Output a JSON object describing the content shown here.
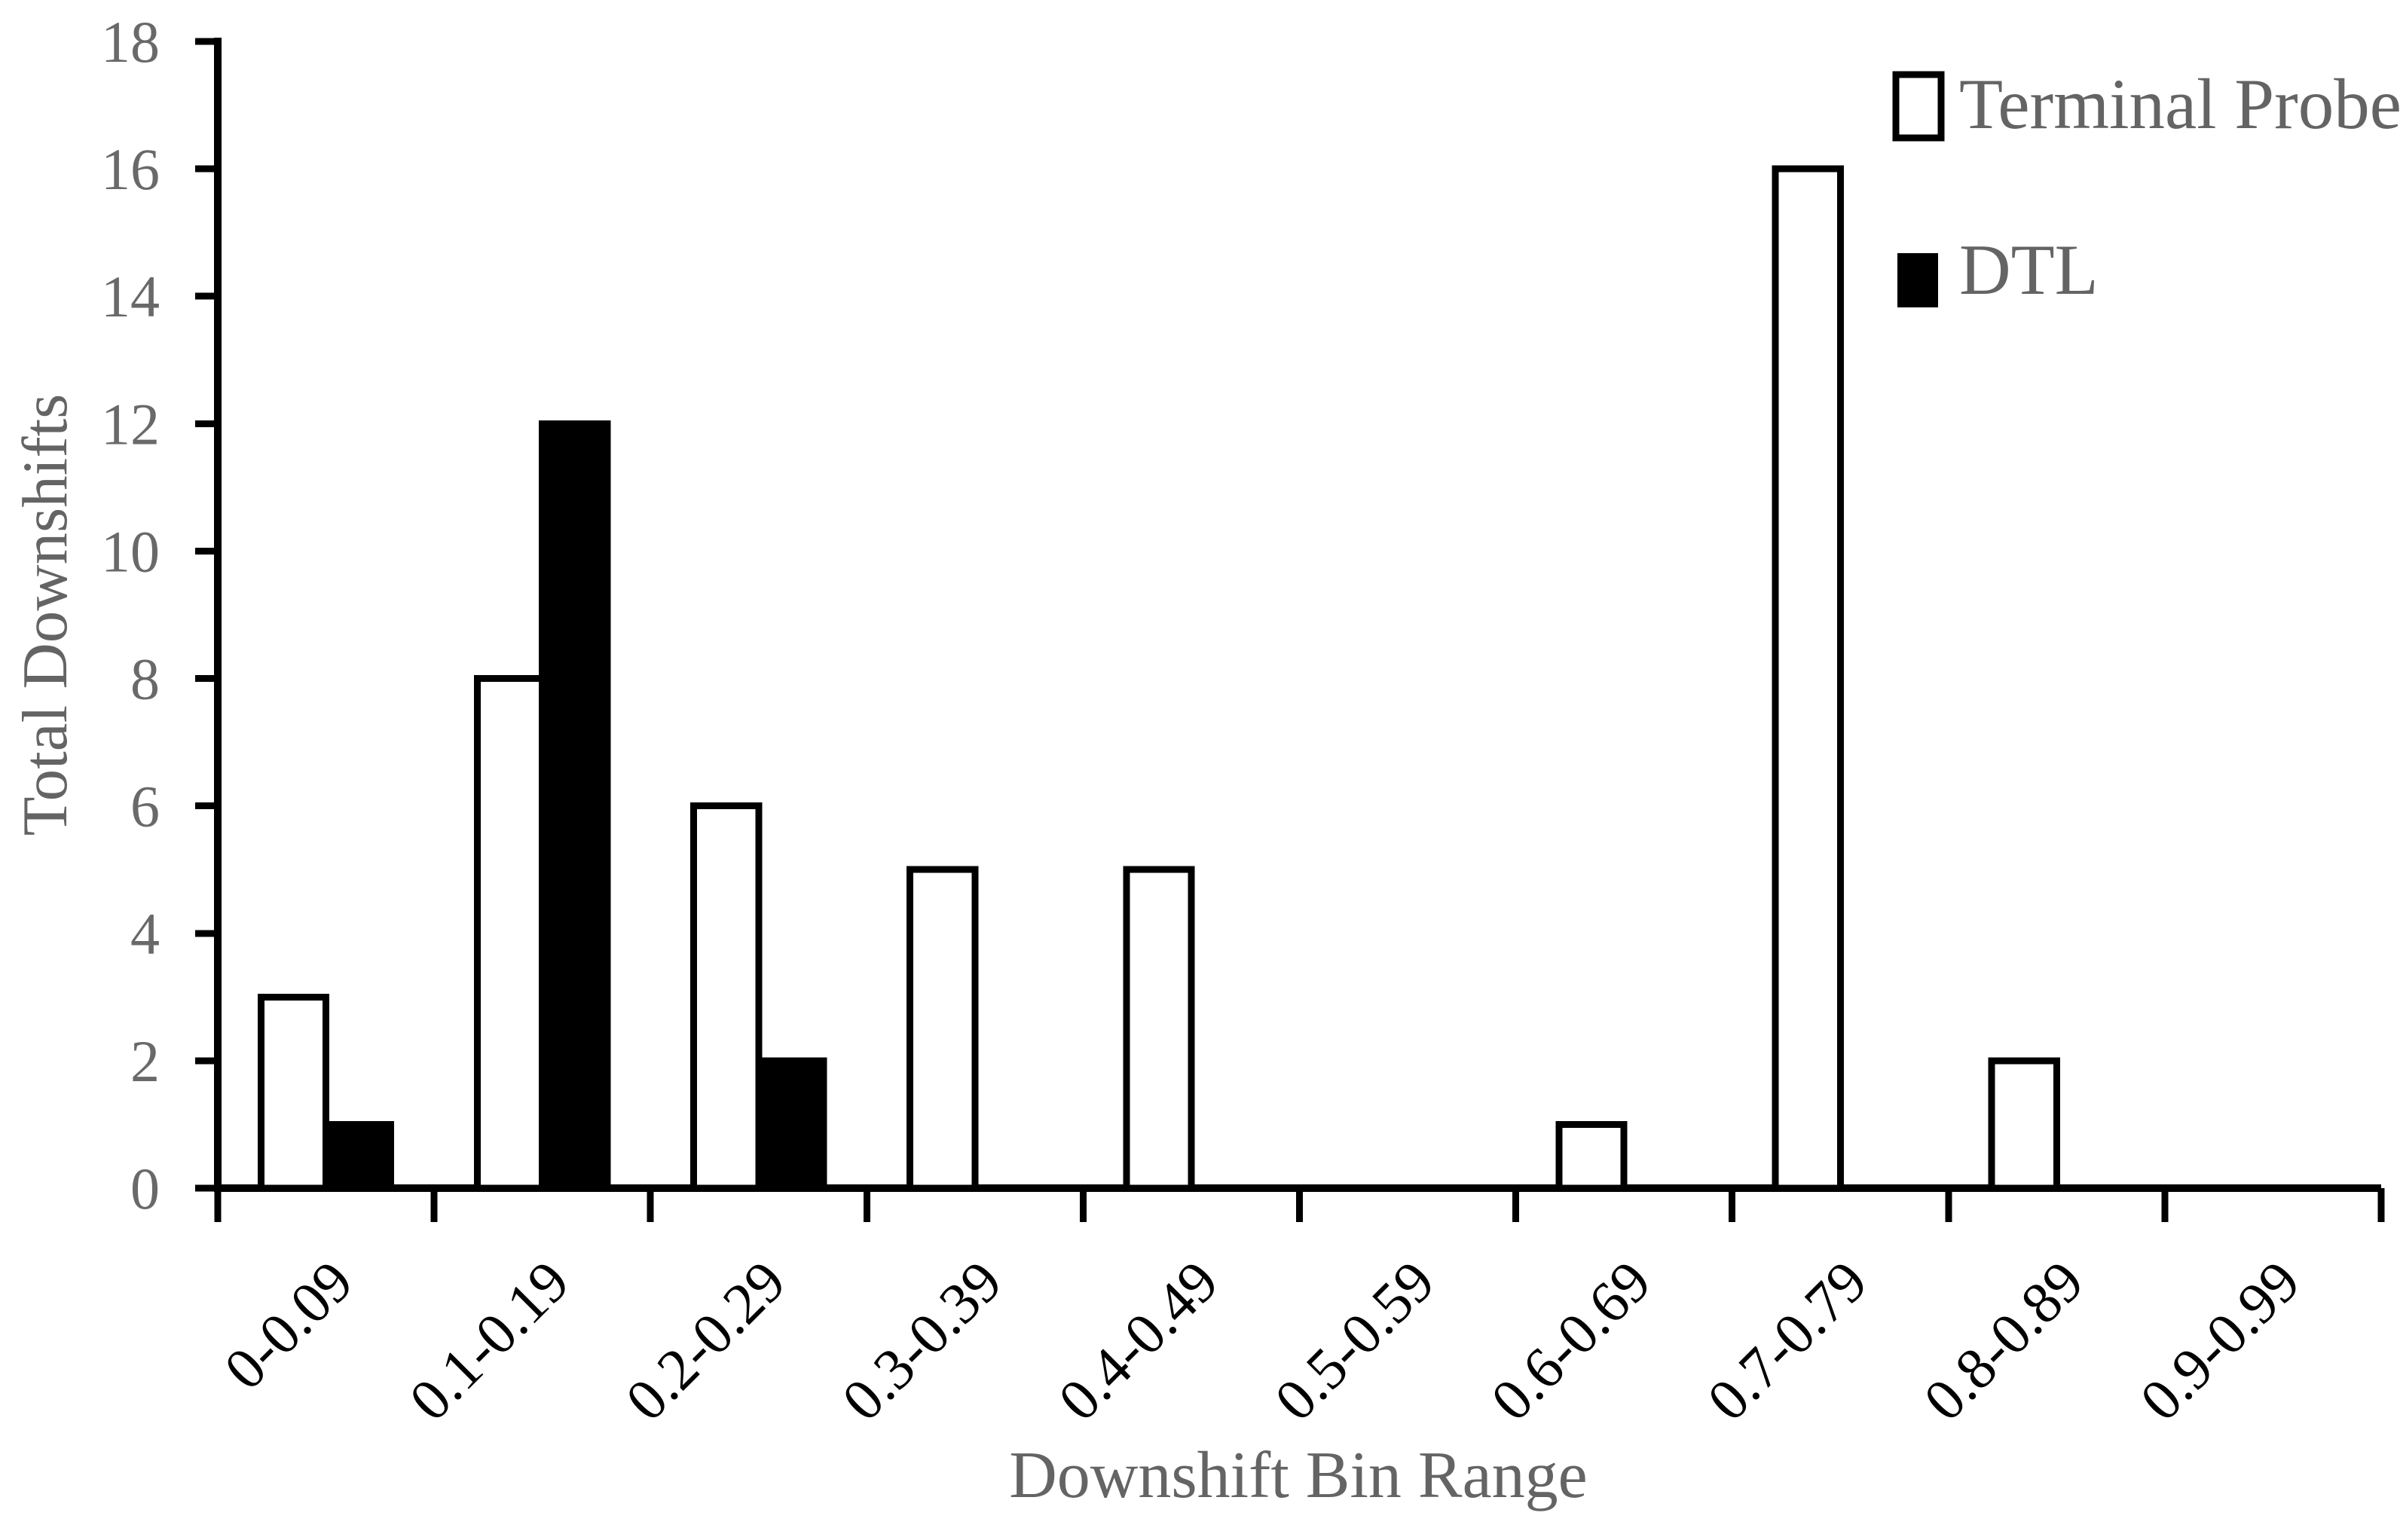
{
  "chart_data": {
    "type": "bar",
    "title": "",
    "xlabel": "Downshift Bin Range",
    "ylabel": "Total Downshifts",
    "categories": [
      "0-0.09",
      "0.1-0.19",
      "0.2-0.29",
      "0.3-0.39",
      "0.4-0.49",
      "0.5-0.59",
      "0.6-0.69",
      "0.7-0.79",
      "0.8-0.89",
      "0.9-0.99"
    ],
    "series": [
      {
        "name": "Terminal Probe",
        "fill": "#ffffff",
        "stroke": "#000000",
        "values": [
          3,
          8,
          6,
          5,
          5,
          0,
          1,
          16,
          2,
          0
        ]
      },
      {
        "name": "DTL",
        "fill": "#000000",
        "stroke": "#000000",
        "values": [
          1,
          12,
          2,
          0,
          0,
          0,
          0,
          0,
          0,
          0
        ]
      }
    ],
    "ylim": [
      0,
      18
    ],
    "yticks": [
      0,
      2,
      4,
      6,
      8,
      10,
      12,
      14,
      16,
      18
    ],
    "ytick_step": 2,
    "grid": false,
    "legend_position": "top-right",
    "background": "#ffffff",
    "colors": {
      "axis": "#000000",
      "bar_outline": "#000000",
      "tick_label_y": "#696969",
      "tick_label_x": "#000000",
      "axis_title": "#646464",
      "legend_text": "#646464"
    }
  }
}
